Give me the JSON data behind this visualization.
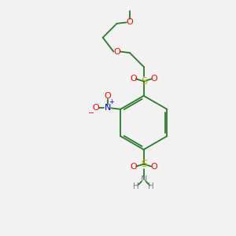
{
  "background_color": "#f2f2f2",
  "bond_color": "#2a7a2a",
  "S_color": "#b8b800",
  "O_color": "#ff0000",
  "N_color": "#0000cc",
  "H_color": "#808080",
  "figsize": [
    3.0,
    3.0
  ],
  "dpi": 100,
  "xlim": [
    0,
    10
  ],
  "ylim": [
    0,
    10
  ]
}
